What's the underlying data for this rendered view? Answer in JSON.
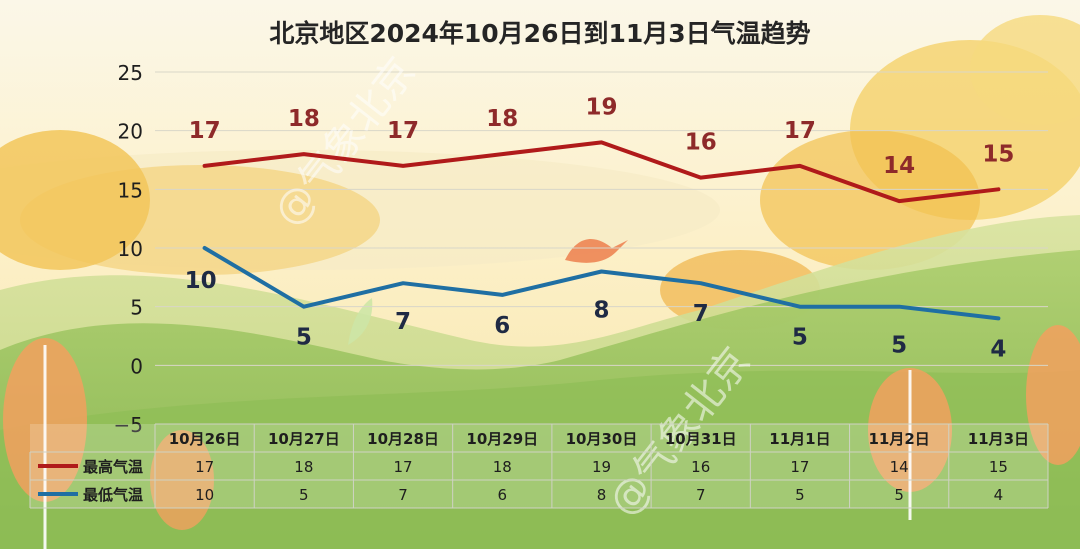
{
  "chart_data": {
    "type": "line",
    "title": "北京地区2024年10月26日到11月3日气温趋势",
    "categories": [
      "10月26日",
      "10月27日",
      "10月28日",
      "10月29日",
      "10月30日",
      "10月31日",
      "11月1日",
      "11月2日",
      "11月3日"
    ],
    "series": [
      {
        "name": "最高气温",
        "values": [
          17,
          18,
          17,
          18,
          19,
          16,
          17,
          14,
          15
        ],
        "color": "#b01a1a"
      },
      {
        "name": "最低气温",
        "values": [
          10,
          5,
          7,
          6,
          8,
          7,
          5,
          5,
          4
        ],
        "color": "#1f6fa3"
      }
    ],
    "ylim": [
      -5,
      25
    ],
    "yticks": [
      "25",
      "20",
      "15",
      "10",
      "5",
      "0",
      "−5"
    ],
    "grid": true,
    "legend": "data-table-bottom"
  },
  "watermark": "@气象北京"
}
